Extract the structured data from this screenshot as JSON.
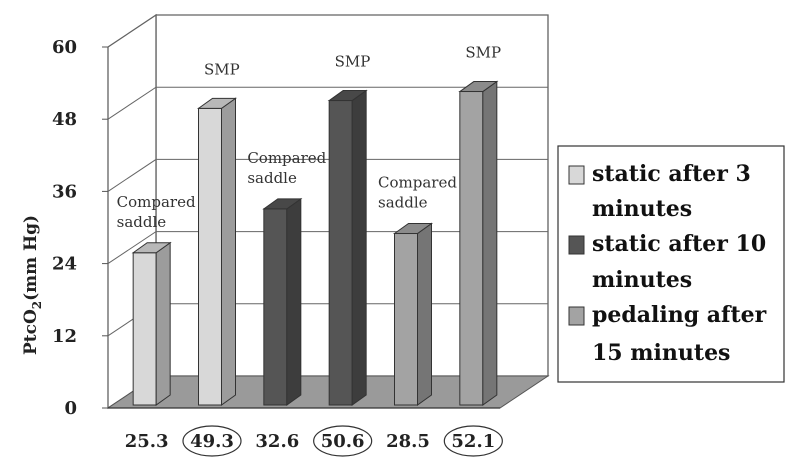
{
  "chart_data": {
    "type": "bar",
    "ylabel": "PtcO2(mm Hg)",
    "ylabel_main": "PtcO",
    "ylabel_sub": "2",
    "ylabel_rest": "(mm Hg)",
    "ylim": [
      0,
      60
    ],
    "yticks": [
      "0",
      "12",
      "24",
      "36",
      "48",
      "60"
    ],
    "grid": true,
    "legend_position": "right",
    "categories": [
      "25.3",
      "49.3",
      "32.6",
      "50.6",
      "28.5",
      "52.1"
    ],
    "circled_categories": [
      false,
      true,
      false,
      true,
      false,
      true
    ],
    "series": [
      {
        "name": "static after 3 minutes",
        "color": "#d8d8d8"
      },
      {
        "name": "static after 10 minutes",
        "color": "#555555"
      },
      {
        "name": "pedaling after 15 minutes",
        "color": "#a3a3a3"
      }
    ],
    "bars": [
      {
        "value": 25.3,
        "series": 0,
        "annotation": [
          "Compared",
          "saddle"
        ]
      },
      {
        "value": 49.3,
        "series": 0,
        "annotation": [
          "SMP"
        ]
      },
      {
        "value": 32.6,
        "series": 1,
        "annotation": [
          "Compared",
          "saddle"
        ]
      },
      {
        "value": 50.6,
        "series": 1,
        "annotation": [
          "SMP"
        ]
      },
      {
        "value": 28.5,
        "series": 2,
        "annotation": [
          "Compared",
          "saddle"
        ]
      },
      {
        "value": 52.1,
        "series": 2,
        "annotation": [
          "SMP"
        ]
      }
    ]
  },
  "legend": {
    "items": [
      {
        "line1": "static after 3",
        "line1_bold": "",
        "line2": "minutes"
      },
      {
        "line1": "static after 10",
        "line1_bold": "",
        "line2": "minutes"
      },
      {
        "line1": "pedaling after",
        "line1_bold": "",
        "line2": "15 minutes"
      }
    ]
  }
}
